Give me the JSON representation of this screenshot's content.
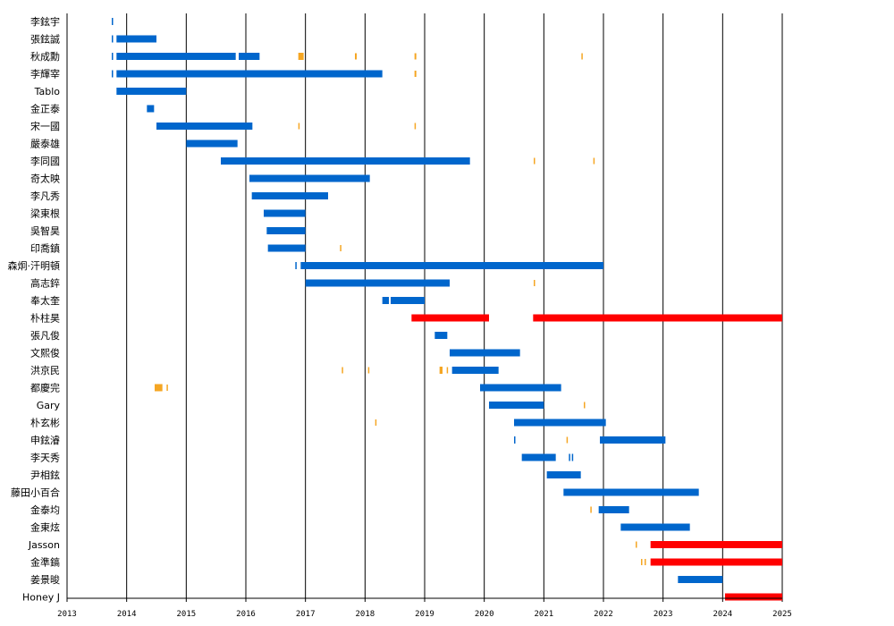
{
  "chart_data": {
    "type": "timeline",
    "title": "",
    "xlabel": "",
    "ylabel": "",
    "x_range": [
      2013,
      2025
    ],
    "x_ticks": [
      "2013",
      "2014",
      "2015",
      "2016",
      "2017",
      "2018",
      "2019",
      "2020",
      "2021",
      "2022",
      "2023",
      "2024",
      "2025"
    ],
    "colors": {
      "blue": "#0066cc",
      "red": "#ff0000",
      "orange": "#f5a623",
      "gridline": "#000000"
    },
    "rows": [
      {
        "label": "李鉉宇",
        "bars": [
          {
            "start": 2013.75,
            "end": 2013.76,
            "color": "blue"
          }
        ]
      },
      {
        "label": "張鉉誠",
        "bars": [
          {
            "start": 2013.75,
            "end": 2013.76,
            "color": "blue"
          },
          {
            "start": 2013.83,
            "end": 2014.5,
            "color": "blue"
          }
        ]
      },
      {
        "label": "秋成勳",
        "bars": [
          {
            "start": 2013.75,
            "end": 2013.76,
            "color": "blue"
          },
          {
            "start": 2013.83,
            "end": 2015.83,
            "color": "blue"
          },
          {
            "start": 2015.88,
            "end": 2016.23,
            "color": "blue"
          },
          {
            "start": 2016.88,
            "end": 2016.97,
            "color": "orange"
          },
          {
            "start": 2017.83,
            "end": 2017.86,
            "color": "orange"
          },
          {
            "start": 2018.83,
            "end": 2018.86,
            "color": "orange"
          },
          {
            "start": 2021.63,
            "end": 2021.65,
            "color": "orange"
          }
        ]
      },
      {
        "label": "李輝宰",
        "bars": [
          {
            "start": 2013.75,
            "end": 2013.76,
            "color": "blue"
          },
          {
            "start": 2013.83,
            "end": 2018.29,
            "color": "blue"
          },
          {
            "start": 2018.83,
            "end": 2018.86,
            "color": "orange"
          }
        ]
      },
      {
        "label": "Tablo",
        "bars": [
          {
            "start": 2013.83,
            "end": 2015.0,
            "color": "blue"
          }
        ]
      },
      {
        "label": "金正泰",
        "bars": [
          {
            "start": 2014.34,
            "end": 2014.46,
            "color": "blue"
          }
        ]
      },
      {
        "label": "宋一國",
        "bars": [
          {
            "start": 2014.5,
            "end": 2016.11,
            "color": "blue"
          },
          {
            "start": 2016.88,
            "end": 2016.89,
            "color": "orange"
          },
          {
            "start": 2018.83,
            "end": 2018.84,
            "color": "orange"
          }
        ]
      },
      {
        "label": "嚴泰雄",
        "bars": [
          {
            "start": 2015.0,
            "end": 2015.86,
            "color": "blue"
          }
        ]
      },
      {
        "label": "李同國",
        "bars": [
          {
            "start": 2015.58,
            "end": 2019.76,
            "color": "blue"
          },
          {
            "start": 2020.83,
            "end": 2020.84,
            "color": "orange"
          },
          {
            "start": 2021.83,
            "end": 2021.84,
            "color": "orange"
          }
        ]
      },
      {
        "label": "奇太映",
        "bars": [
          {
            "start": 2016.06,
            "end": 2018.08,
            "color": "blue"
          }
        ]
      },
      {
        "label": "李凡秀",
        "bars": [
          {
            "start": 2016.1,
            "end": 2017.38,
            "color": "blue"
          }
        ]
      },
      {
        "label": "梁東根",
        "bars": [
          {
            "start": 2016.3,
            "end": 2017.0,
            "color": "blue"
          }
        ]
      },
      {
        "label": "吳智昊",
        "bars": [
          {
            "start": 2016.35,
            "end": 2017.0,
            "color": "blue"
          }
        ]
      },
      {
        "label": "印喬鎮",
        "bars": [
          {
            "start": 2016.37,
            "end": 2017.0,
            "color": "blue"
          },
          {
            "start": 2017.58,
            "end": 2017.59,
            "color": "orange"
          }
        ]
      },
      {
        "label": "森炯·汗明頓",
        "bars": [
          {
            "start": 2016.83,
            "end": 2016.84,
            "color": "blue"
          },
          {
            "start": 2016.92,
            "end": 2022.0,
            "color": "blue"
          }
        ]
      },
      {
        "label": "高志錊",
        "bars": [
          {
            "start": 2017.0,
            "end": 2019.42,
            "color": "blue"
          },
          {
            "start": 2020.83,
            "end": 2020.84,
            "color": "orange"
          }
        ]
      },
      {
        "label": "奉太奎",
        "bars": [
          {
            "start": 2018.29,
            "end": 2018.4,
            "color": "blue"
          },
          {
            "start": 2018.43,
            "end": 2019.0,
            "color": "blue"
          }
        ]
      },
      {
        "label": "朴柱昊",
        "bars": [
          {
            "start": 2018.78,
            "end": 2020.08,
            "color": "red"
          },
          {
            "start": 2020.82,
            "end": 2025.0,
            "color": "red"
          }
        ]
      },
      {
        "label": "張凡俊",
        "bars": [
          {
            "start": 2019.17,
            "end": 2019.38,
            "color": "blue"
          }
        ]
      },
      {
        "label": "文熙俊",
        "bars": [
          {
            "start": 2019.42,
            "end": 2020.6,
            "color": "blue"
          }
        ]
      },
      {
        "label": "洪京民",
        "bars": [
          {
            "start": 2017.61,
            "end": 2017.62,
            "color": "orange"
          },
          {
            "start": 2018.05,
            "end": 2018.06,
            "color": "orange"
          },
          {
            "start": 2019.25,
            "end": 2019.3,
            "color": "orange"
          },
          {
            "start": 2019.37,
            "end": 2019.38,
            "color": "orange"
          },
          {
            "start": 2019.46,
            "end": 2020.24,
            "color": "blue"
          }
        ]
      },
      {
        "label": "都慶完",
        "bars": [
          {
            "start": 2014.47,
            "end": 2014.6,
            "color": "orange"
          },
          {
            "start": 2014.67,
            "end": 2014.68,
            "color": "orange"
          },
          {
            "start": 2019.93,
            "end": 2021.29,
            "color": "blue"
          }
        ]
      },
      {
        "label": "Gary",
        "bars": [
          {
            "start": 2020.08,
            "end": 2021.0,
            "color": "blue"
          },
          {
            "start": 2021.67,
            "end": 2021.68,
            "color": "orange"
          }
        ]
      },
      {
        "label": "朴玄彬",
        "bars": [
          {
            "start": 2018.17,
            "end": 2018.19,
            "color": "orange"
          },
          {
            "start": 2020.5,
            "end": 2022.04,
            "color": "blue"
          }
        ]
      },
      {
        "label": "申鉉濬",
        "bars": [
          {
            "start": 2020.5,
            "end": 2020.51,
            "color": "blue"
          },
          {
            "start": 2021.38,
            "end": 2021.4,
            "color": "orange"
          },
          {
            "start": 2021.94,
            "end": 2023.04,
            "color": "blue"
          }
        ]
      },
      {
        "label": "李天秀",
        "bars": [
          {
            "start": 2020.63,
            "end": 2021.2,
            "color": "blue"
          },
          {
            "start": 2021.42,
            "end": 2021.43,
            "color": "blue"
          },
          {
            "start": 2021.47,
            "end": 2021.48,
            "color": "blue"
          }
        ]
      },
      {
        "label": "尹相鉉",
        "bars": [
          {
            "start": 2021.05,
            "end": 2021.62,
            "color": "blue"
          }
        ]
      },
      {
        "label": "藤田小百合",
        "bars": [
          {
            "start": 2021.33,
            "end": 2023.6,
            "color": "blue"
          }
        ]
      },
      {
        "label": "金泰均",
        "bars": [
          {
            "start": 2021.78,
            "end": 2021.79,
            "color": "orange"
          },
          {
            "start": 2021.92,
            "end": 2022.43,
            "color": "blue"
          }
        ]
      },
      {
        "label": "金東炫",
        "bars": [
          {
            "start": 2022.29,
            "end": 2023.45,
            "color": "blue"
          }
        ]
      },
      {
        "label": "Jasson",
        "bars": [
          {
            "start": 2022.54,
            "end": 2022.55,
            "color": "orange"
          },
          {
            "start": 2022.79,
            "end": 2025.0,
            "color": "red"
          }
        ]
      },
      {
        "label": "金準鎬",
        "bars": [
          {
            "start": 2022.63,
            "end": 2022.64,
            "color": "orange"
          },
          {
            "start": 2022.69,
            "end": 2022.7,
            "color": "orange"
          },
          {
            "start": 2022.79,
            "end": 2025.0,
            "color": "red"
          }
        ]
      },
      {
        "label": "姜景晙",
        "bars": [
          {
            "start": 2023.25,
            "end": 2024.0,
            "color": "blue"
          }
        ]
      },
      {
        "label": "Honey J",
        "bars": [
          {
            "start": 2024.04,
            "end": 2025.0,
            "color": "red"
          }
        ]
      }
    ]
  }
}
